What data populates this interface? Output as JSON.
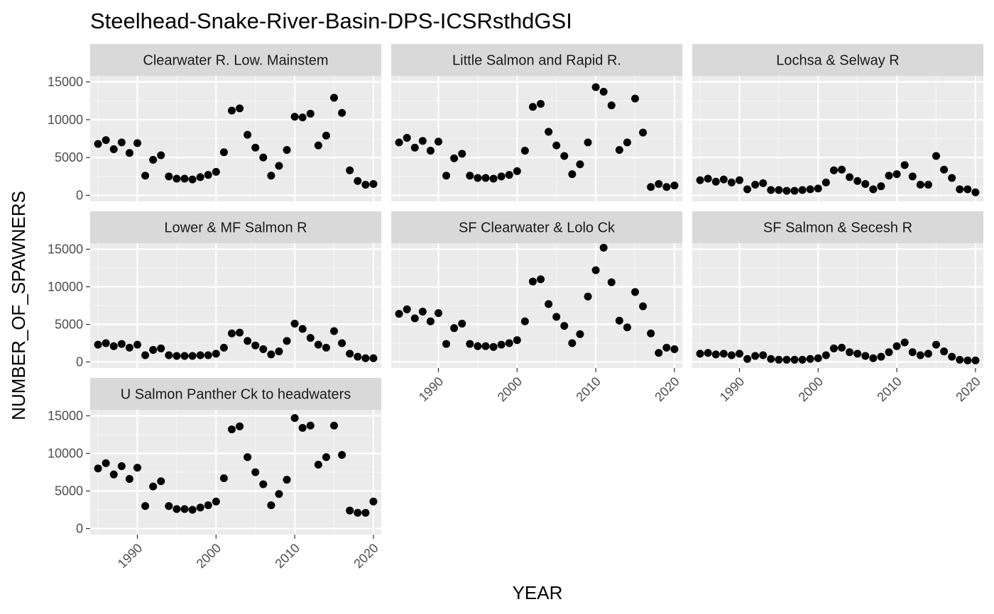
{
  "chart_data": {
    "type": "scatter",
    "title": "Steelhead-Snake-River-Basin-DPS-ICSRsthdGSI",
    "xlabel": "YEAR",
    "ylabel": "NUMBER_OF_SPAWNERS",
    "xlim": [
      1984,
      2021
    ],
    "ylim": [
      -800,
      15800
    ],
    "x_ticks": [
      1990,
      2000,
      2010,
      2020
    ],
    "y_ticks": [
      0,
      5000,
      10000,
      15000
    ],
    "grid": true,
    "point_color": "#000000",
    "panel_background": "#ebebeb",
    "strip_background": "#d9d9d9",
    "panels": [
      {
        "name": "Clearwater R. Low. Mainstem",
        "x": [
          1985,
          1986,
          1987,
          1988,
          1989,
          1990,
          1991,
          1992,
          1993,
          1994,
          1995,
          1996,
          1997,
          1998,
          1999,
          2000,
          2001,
          2002,
          2003,
          2004,
          2005,
          2006,
          2007,
          2008,
          2009,
          2010,
          2011,
          2012,
          2013,
          2014,
          2015,
          2016,
          2017,
          2018,
          2019,
          2020
        ],
        "y": [
          6800,
          7300,
          6100,
          7000,
          5600,
          6900,
          2600,
          4700,
          5300,
          2500,
          2200,
          2200,
          2100,
          2400,
          2700,
          3100,
          5700,
          11200,
          11500,
          8000,
          6300,
          5000,
          2600,
          3900,
          6000,
          10400,
          10300,
          10800,
          6600,
          7900,
          12900,
          10900,
          3300,
          1900,
          1400,
          1500
        ]
      },
      {
        "name": "Little Salmon and Rapid R.",
        "x": [
          1985,
          1986,
          1987,
          1988,
          1989,
          1990,
          1991,
          1992,
          1993,
          1994,
          1995,
          1996,
          1997,
          1998,
          1999,
          2000,
          2001,
          2002,
          2003,
          2004,
          2005,
          2006,
          2007,
          2008,
          2009,
          2010,
          2011,
          2012,
          2013,
          2014,
          2015,
          2016,
          2017,
          2018,
          2019,
          2020
        ],
        "y": [
          7000,
          7600,
          6300,
          7200,
          5900,
          7100,
          2600,
          4900,
          5500,
          2600,
          2300,
          2300,
          2200,
          2500,
          2700,
          3200,
          5900,
          11700,
          12100,
          8400,
          6600,
          5200,
          2800,
          4100,
          7000,
          14300,
          13700,
          11900,
          6000,
          7000,
          12800,
          8300,
          1100,
          1500,
          1100,
          1300
        ]
      },
      {
        "name": "Lochsa & Selway R",
        "x": [
          1985,
          1986,
          1987,
          1988,
          1989,
          1990,
          1991,
          1992,
          1993,
          1994,
          1995,
          1996,
          1997,
          1998,
          1999,
          2000,
          2001,
          2002,
          2003,
          2004,
          2005,
          2006,
          2007,
          2008,
          2009,
          2010,
          2011,
          2012,
          2013,
          2014,
          2015,
          2016,
          2017,
          2018,
          2019,
          2020
        ],
        "y": [
          2000,
          2200,
          1800,
          2100,
          1700,
          2000,
          800,
          1400,
          1600,
          700,
          700,
          600,
          600,
          700,
          800,
          900,
          1700,
          3300,
          3400,
          2400,
          1900,
          1500,
          800,
          1200,
          2600,
          2800,
          4000,
          2500,
          1400,
          1400,
          5200,
          3400,
          2300,
          800,
          800,
          400
        ]
      },
      {
        "name": "Lower & MF Salmon R",
        "x": [
          1985,
          1986,
          1987,
          1988,
          1989,
          1990,
          1991,
          1992,
          1993,
          1994,
          1995,
          1996,
          1997,
          1998,
          1999,
          2000,
          2001,
          2002,
          2003,
          2004,
          2005,
          2006,
          2007,
          2008,
          2009,
          2010,
          2011,
          2012,
          2013,
          2014,
          2015,
          2016,
          2017,
          2018,
          2019,
          2020
        ],
        "y": [
          2300,
          2500,
          2100,
          2400,
          1900,
          2300,
          900,
          1600,
          1800,
          900,
          800,
          800,
          800,
          900,
          900,
          1100,
          1900,
          3800,
          3900,
          2800,
          2200,
          1700,
          1000,
          1400,
          2800,
          5100,
          4400,
          3200,
          2300,
          1900,
          4100,
          2500,
          1100,
          700,
          500,
          500
        ]
      },
      {
        "name": "SF Clearwater & Lolo Ck",
        "x": [
          1985,
          1986,
          1987,
          1988,
          1989,
          1990,
          1991,
          1992,
          1993,
          1994,
          1995,
          1996,
          1997,
          1998,
          1999,
          2000,
          2001,
          2002,
          2003,
          2004,
          2005,
          2006,
          2007,
          2008,
          2009,
          2010,
          2011,
          2012,
          2013,
          2014,
          2015,
          2016,
          2017,
          2018,
          2019,
          2020
        ],
        "y": [
          6400,
          7000,
          5800,
          6700,
          5400,
          6500,
          2400,
          4500,
          5100,
          2400,
          2100,
          2100,
          2000,
          2300,
          2500,
          2900,
          5400,
          10700,
          11000,
          7700,
          6000,
          4800,
          2500,
          3700,
          8700,
          12200,
          15200,
          10600,
          5500,
          4600,
          9300,
          7400,
          3800,
          1200,
          1900,
          1700
        ]
      },
      {
        "name": "SF Salmon & Secesh R",
        "x": [
          1985,
          1986,
          1987,
          1988,
          1989,
          1990,
          1991,
          1992,
          1993,
          1994,
          1995,
          1996,
          1997,
          1998,
          1999,
          2000,
          2001,
          2002,
          2003,
          2004,
          2005,
          2006,
          2007,
          2008,
          2009,
          2010,
          2011,
          2012,
          2013,
          2014,
          2015,
          2016,
          2017,
          2018,
          2019,
          2020
        ],
        "y": [
          1100,
          1200,
          1000,
          1100,
          900,
          1100,
          400,
          800,
          900,
          400,
          300,
          300,
          300,
          300,
          400,
          500,
          900,
          1800,
          1900,
          1300,
          1100,
          800,
          500,
          700,
          1300,
          2100,
          2600,
          1300,
          900,
          1100,
          2300,
          1400,
          700,
          300,
          200,
          200
        ]
      },
      {
        "name": "U Salmon Panther Ck to headwaters",
        "x": [
          1985,
          1986,
          1987,
          1988,
          1989,
          1990,
          1991,
          1992,
          1993,
          1994,
          1995,
          1996,
          1997,
          1998,
          1999,
          2000,
          2001,
          2002,
          2003,
          2004,
          2005,
          2006,
          2007,
          2008,
          2009,
          2010,
          2011,
          2012,
          2013,
          2014,
          2015,
          2016,
          2017,
          2018,
          2019,
          2020
        ],
        "y": [
          8000,
          8700,
          7200,
          8300,
          6600,
          8100,
          3000,
          5600,
          6300,
          3000,
          2600,
          2600,
          2500,
          2800,
          3100,
          3600,
          6700,
          13200,
          13600,
          9500,
          7500,
          5900,
          3100,
          4600,
          6500,
          14700,
          13400,
          13700,
          8500,
          9500,
          13700,
          9800,
          2400,
          2100,
          2100,
          3600
        ]
      }
    ]
  }
}
